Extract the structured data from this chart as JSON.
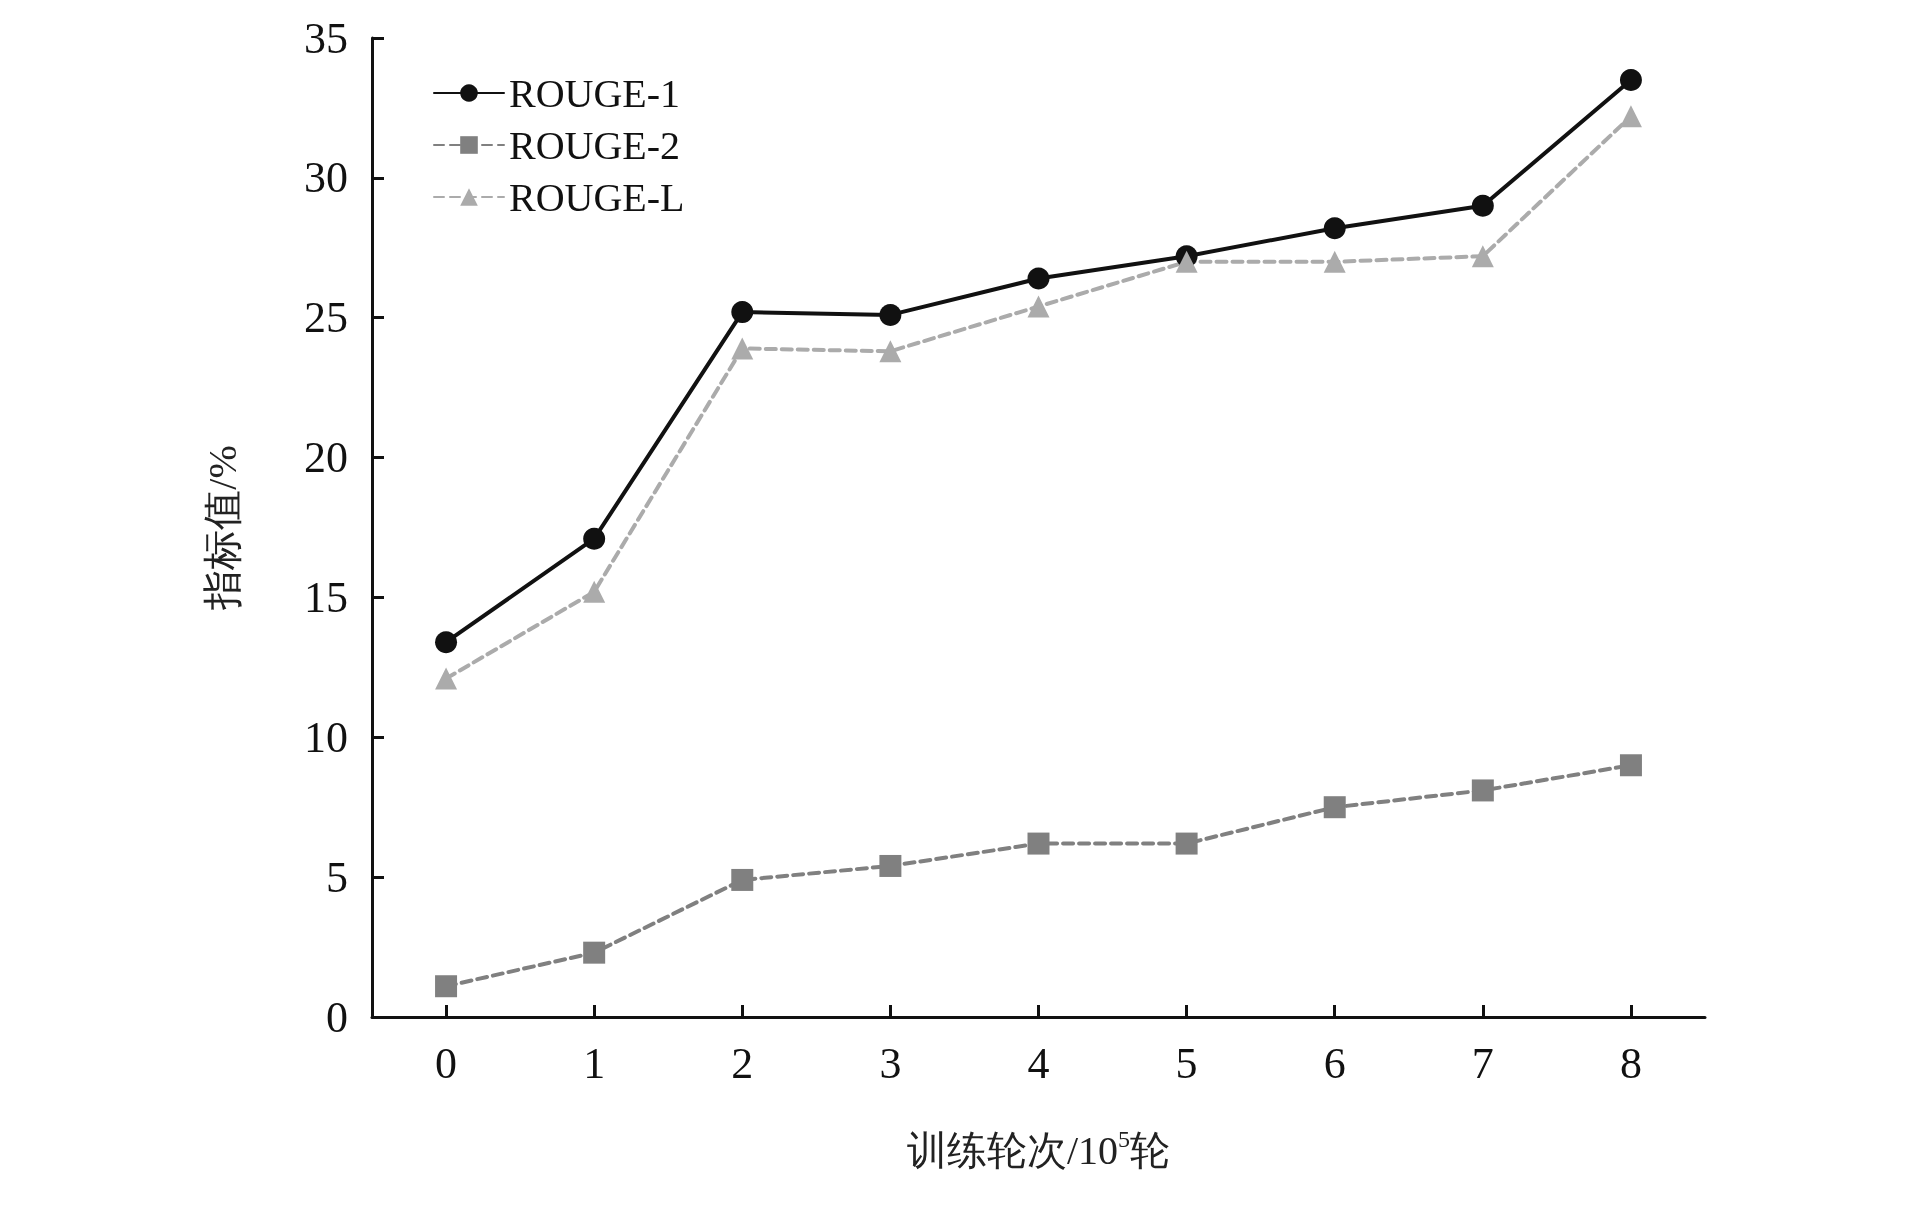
{
  "chart_data": {
    "type": "line",
    "xlabel": "训练轮次/10$^{5}$轮",
    "ylabel": "指标值/%",
    "categories": [
      "0",
      "1",
      "2",
      "3",
      "4",
      "5",
      "6",
      "7",
      "8"
    ],
    "ylim": [
      0,
      35
    ],
    "yticks": [
      0,
      5,
      10,
      15,
      20,
      25,
      30,
      35
    ],
    "grid": false,
    "legend": "top left",
    "series": [
      {
        "name": "ROUGE-1",
        "color": "#111111",
        "marker": "circle",
        "line_style": "solid",
        "values": [
          13.4,
          17.1,
          25.2,
          25.1,
          26.4,
          27.2,
          28.2,
          29.0,
          33.5
        ]
      },
      {
        "name": "ROUGE-2",
        "color": "#808080",
        "marker": "square",
        "line_style": "dashed",
        "values": [
          1.1,
          2.3,
          4.9,
          5.4,
          6.2,
          6.2,
          7.5,
          8.1,
          9.0
        ]
      },
      {
        "name": "ROUGE-L",
        "color": "#ababab",
        "marker": "triangle",
        "line_style": "dashed",
        "values": [
          12.1,
          15.2,
          23.9,
          23.8,
          25.4,
          27.0,
          27.0,
          27.2,
          32.2
        ]
      }
    ]
  }
}
